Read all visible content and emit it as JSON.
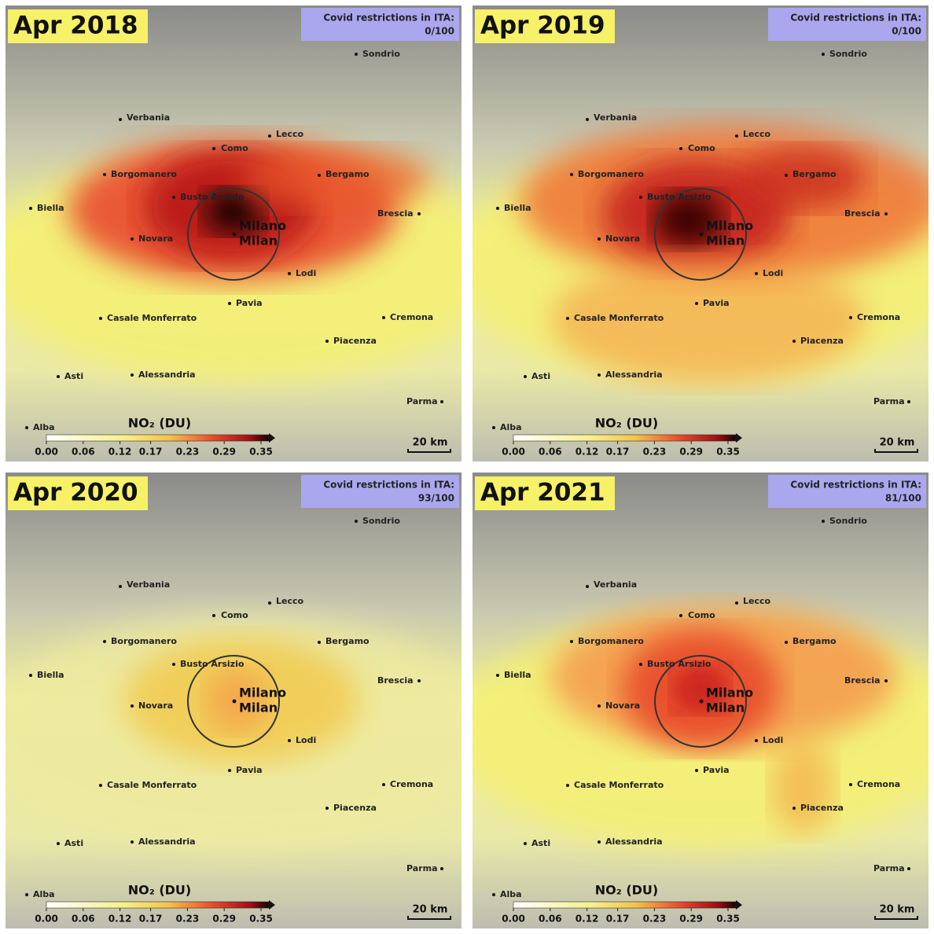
{
  "panels": [
    {
      "title": "Apr 2018",
      "restrictions_label": "Covid restrictions in ITA:",
      "restrictions_value": "0/100"
    },
    {
      "title": "Apr 2019",
      "restrictions_label": "Covid restrictions in ITA:",
      "restrictions_value": "0/100"
    },
    {
      "title": "Apr 2020",
      "restrictions_label": "Covid restrictions in ITA:",
      "restrictions_value": "93/100"
    },
    {
      "title": "Apr 2021",
      "restrictions_label": "Covid restrictions in ITA:",
      "restrictions_value": "81/100"
    }
  ],
  "cities": [
    "Sondrio",
    "Verbania",
    "Lecco",
    "Como",
    "Borgomanero",
    "Bergamo",
    "Busto Arsizio",
    "Biella",
    "Brescia",
    "Novara",
    "Lodi",
    "Pavia",
    "Casale Monferrato",
    "Cremona",
    "Piacenza",
    "Asti",
    "Alessandria",
    "Parma",
    "Alba"
  ],
  "city_main": [
    "Milano",
    "Milan"
  ],
  "colorbar": {
    "title": "NO₂ (DU)",
    "ticks": [
      {
        "value": 0,
        "label": "0.00"
      },
      {
        "value": 0.06,
        "label": "0.06"
      },
      {
        "value": 0.12,
        "label": "0.12"
      },
      {
        "value": 0.17,
        "label": "0.17"
      },
      {
        "value": 0.23,
        "label": "0.23"
      },
      {
        "value": 0.29,
        "label": "0.29"
      },
      {
        "value": 0.35,
        "label": "0.35"
      }
    ]
  },
  "scale_bar": "20 km"
}
